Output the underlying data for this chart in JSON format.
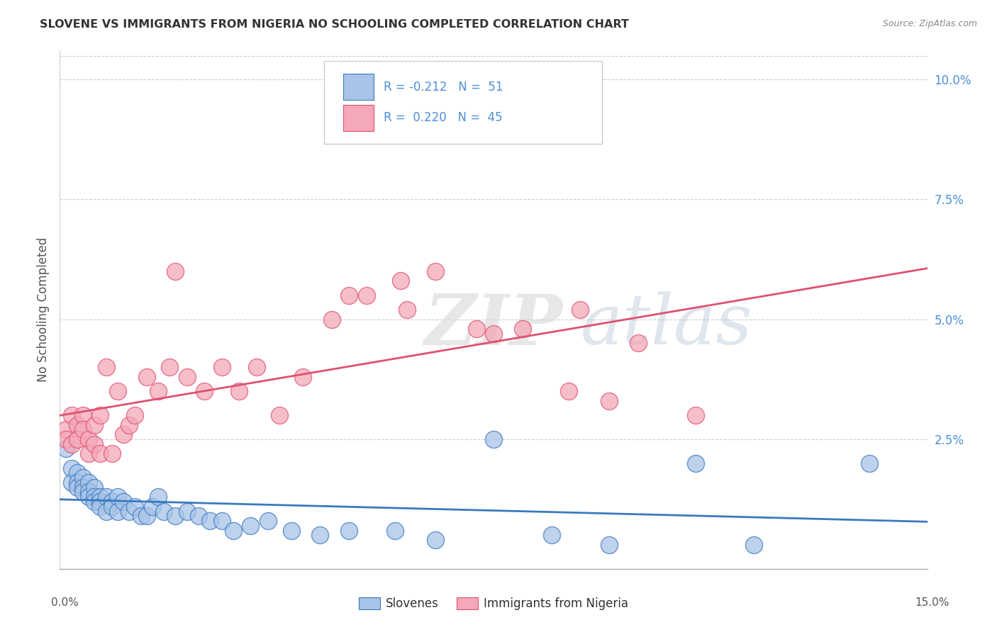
{
  "title": "SLOVENE VS IMMIGRANTS FROM NIGERIA NO SCHOOLING COMPLETED CORRELATION CHART",
  "source": "Source: ZipAtlas.com",
  "ylabel": "No Schooling Completed",
  "right_yticks": [
    0.0,
    0.025,
    0.05,
    0.075,
    0.1
  ],
  "right_yticklabels": [
    "",
    "2.5%",
    "5.0%",
    "7.5%",
    "10.0%"
  ],
  "xlim": [
    0.0,
    0.15
  ],
  "ylim": [
    -0.002,
    0.106
  ],
  "blue_color": "#a8c4e8",
  "pink_color": "#f4a8b8",
  "blue_line_color": "#3a7abf",
  "pink_line_color": "#e05070",
  "legend_label_blue": "Slovenes",
  "legend_label_pink": "Immigrants from Nigeria",
  "watermark_zip": "ZIP",
  "watermark_atlas": "atlas",
  "blue_dots_x": [
    0.001,
    0.002,
    0.002,
    0.003,
    0.003,
    0.003,
    0.004,
    0.004,
    0.004,
    0.005,
    0.005,
    0.005,
    0.006,
    0.006,
    0.006,
    0.007,
    0.007,
    0.007,
    0.008,
    0.008,
    0.009,
    0.009,
    0.01,
    0.01,
    0.011,
    0.012,
    0.013,
    0.014,
    0.015,
    0.016,
    0.017,
    0.018,
    0.02,
    0.022,
    0.024,
    0.026,
    0.028,
    0.03,
    0.033,
    0.036,
    0.04,
    0.045,
    0.05,
    0.058,
    0.065,
    0.075,
    0.085,
    0.095,
    0.11,
    0.12,
    0.14
  ],
  "blue_dots_y": [
    0.023,
    0.019,
    0.016,
    0.018,
    0.016,
    0.015,
    0.017,
    0.015,
    0.014,
    0.016,
    0.014,
    0.013,
    0.015,
    0.013,
    0.012,
    0.013,
    0.012,
    0.011,
    0.013,
    0.01,
    0.012,
    0.011,
    0.013,
    0.01,
    0.012,
    0.01,
    0.011,
    0.009,
    0.009,
    0.011,
    0.013,
    0.01,
    0.009,
    0.01,
    0.009,
    0.008,
    0.008,
    0.006,
    0.007,
    0.008,
    0.006,
    0.005,
    0.006,
    0.006,
    0.004,
    0.025,
    0.005,
    0.003,
    0.02,
    0.003,
    0.02
  ],
  "pink_dots_x": [
    0.001,
    0.001,
    0.002,
    0.002,
    0.003,
    0.003,
    0.004,
    0.004,
    0.005,
    0.005,
    0.006,
    0.006,
    0.007,
    0.007,
    0.008,
    0.009,
    0.01,
    0.011,
    0.012,
    0.013,
    0.015,
    0.017,
    0.019,
    0.022,
    0.025,
    0.028,
    0.031,
    0.034,
    0.038,
    0.042,
    0.047,
    0.053,
    0.059,
    0.065,
    0.072,
    0.08,
    0.088,
    0.095,
    0.05,
    0.06,
    0.075,
    0.09,
    0.1,
    0.11,
    0.02
  ],
  "pink_dots_y": [
    0.027,
    0.025,
    0.03,
    0.024,
    0.028,
    0.025,
    0.03,
    0.027,
    0.025,
    0.022,
    0.028,
    0.024,
    0.03,
    0.022,
    0.04,
    0.022,
    0.035,
    0.026,
    0.028,
    0.03,
    0.038,
    0.035,
    0.04,
    0.038,
    0.035,
    0.04,
    0.035,
    0.04,
    0.03,
    0.038,
    0.05,
    0.055,
    0.058,
    0.06,
    0.048,
    0.048,
    0.035,
    0.033,
    0.055,
    0.052,
    0.047,
    0.052,
    0.045,
    0.03,
    0.06
  ]
}
